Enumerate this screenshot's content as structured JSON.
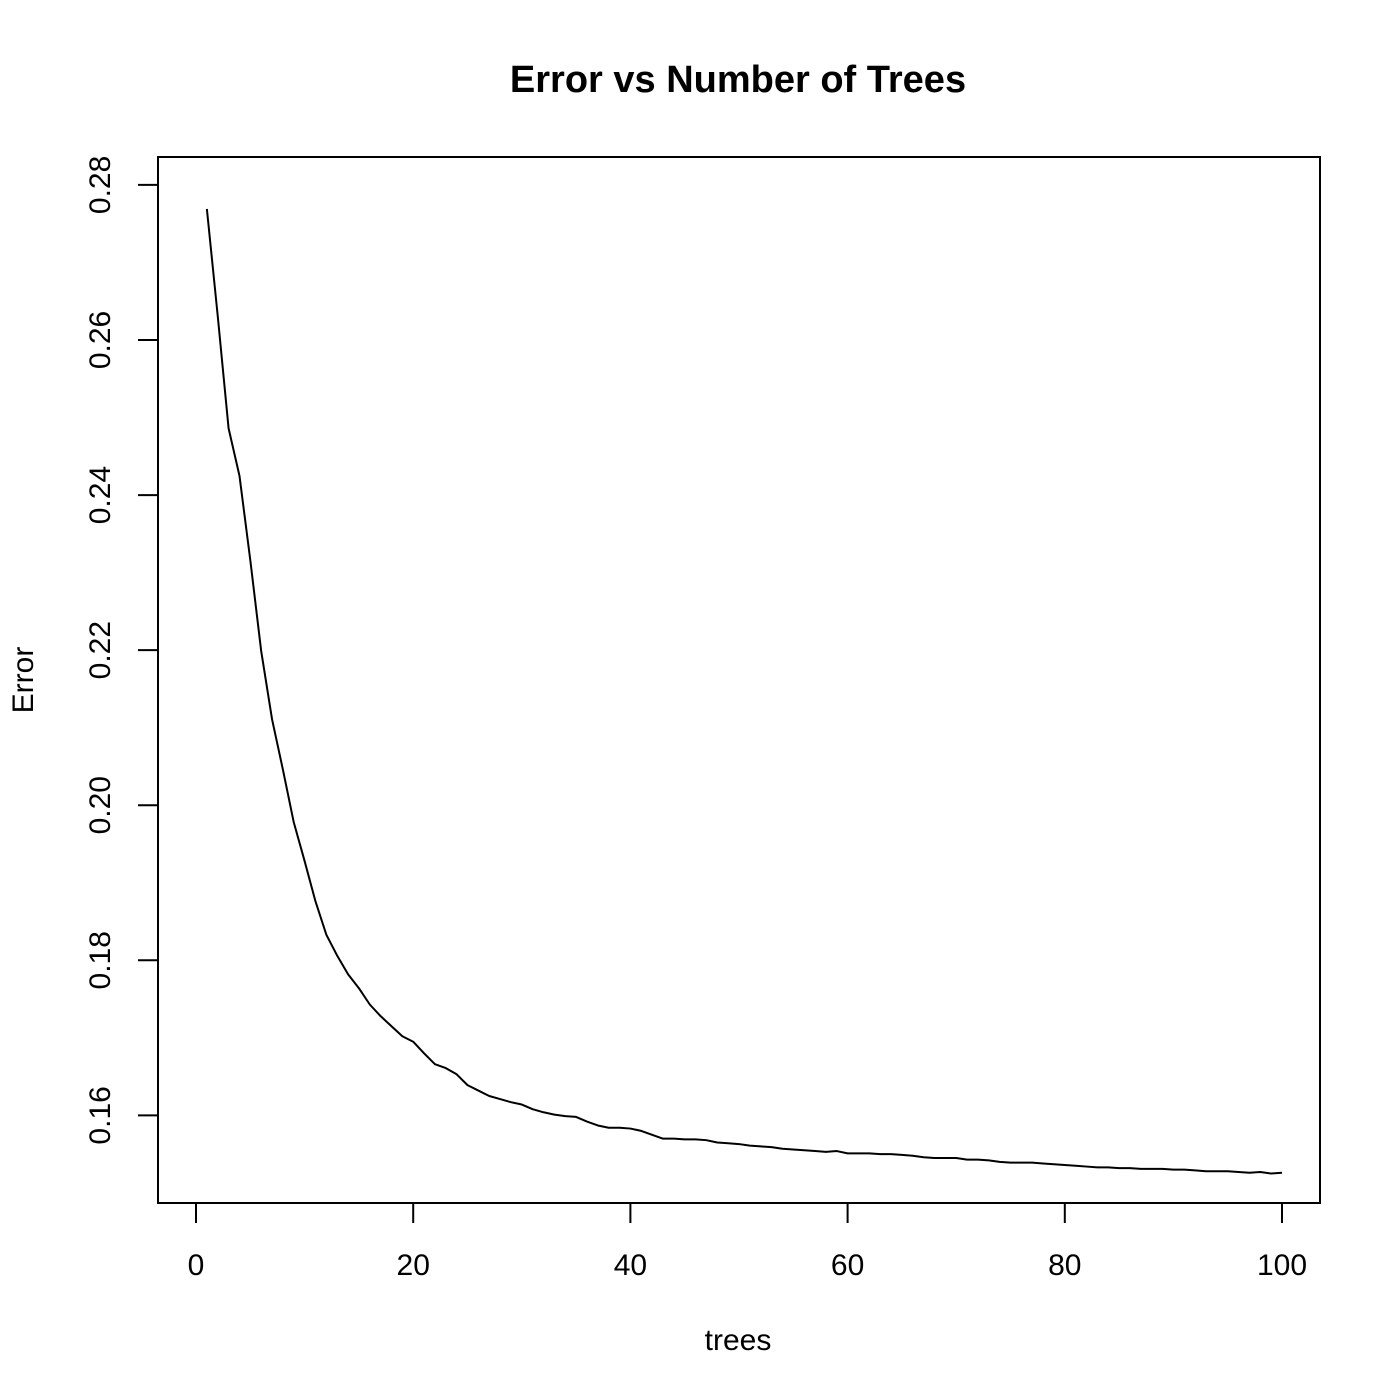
{
  "chart_data": {
    "type": "line",
    "title": "Error vs Number of Trees",
    "xlabel": "trees",
    "ylabel": "Error",
    "xlim": [
      -3.5,
      103.5
    ],
    "ylim": [
      0.1487,
      0.2836
    ],
    "xticks": [
      0,
      20,
      40,
      60,
      80,
      100
    ],
    "xtick_labels": [
      "0",
      "20",
      "40",
      "60",
      "80",
      "100"
    ],
    "yticks": [
      0.16,
      0.18,
      0.2,
      0.22,
      0.24,
      0.26,
      0.28
    ],
    "ytick_labels": [
      "0.16",
      "0.18",
      "0.20",
      "0.22",
      "0.24",
      "0.26",
      "0.28"
    ],
    "grid": false,
    "line_color": "#000000",
    "series": [
      {
        "name": "Error",
        "x": [
          1,
          2,
          3,
          4,
          5,
          6,
          7,
          8,
          9,
          10,
          11,
          12,
          13,
          14,
          15,
          16,
          17,
          18,
          19,
          20,
          21,
          22,
          23,
          24,
          25,
          26,
          27,
          28,
          29,
          30,
          31,
          32,
          33,
          34,
          35,
          36,
          37,
          38,
          39,
          40,
          41,
          42,
          43,
          44,
          45,
          46,
          47,
          48,
          49,
          50,
          51,
          52,
          53,
          54,
          55,
          56,
          57,
          58,
          59,
          60,
          61,
          62,
          63,
          64,
          65,
          66,
          67,
          68,
          69,
          70,
          71,
          72,
          73,
          74,
          75,
          76,
          77,
          78,
          79,
          80,
          81,
          82,
          83,
          84,
          85,
          86,
          87,
          88,
          89,
          90,
          91,
          92,
          93,
          94,
          95,
          96,
          97,
          98,
          99,
          100
        ],
        "values": [
          0.2769,
          0.2631,
          0.2486,
          0.2425,
          0.2316,
          0.2199,
          0.2111,
          0.2046,
          0.1978,
          0.1928,
          0.1876,
          0.1833,
          0.1806,
          0.1782,
          0.1764,
          0.1743,
          0.1728,
          0.1715,
          0.1702,
          0.1695,
          0.168,
          0.1666,
          0.1661,
          0.1653,
          0.1639,
          0.1632,
          0.1625,
          0.1621,
          0.1617,
          0.1614,
          0.1608,
          0.1604,
          0.1601,
          0.1599,
          0.1598,
          0.1592,
          0.1587,
          0.1584,
          0.1584,
          0.1583,
          0.158,
          0.1575,
          0.157,
          0.157,
          0.1569,
          0.1569,
          0.1568,
          0.1565,
          0.1564,
          0.1563,
          0.1561,
          0.156,
          0.1559,
          0.1557,
          0.1556,
          0.1555,
          0.1554,
          0.1553,
          0.1554,
          0.1551,
          0.1551,
          0.1551,
          0.155,
          0.155,
          0.1549,
          0.1548,
          0.1546,
          0.1545,
          0.1545,
          0.1545,
          0.1543,
          0.1543,
          0.1542,
          0.154,
          0.1539,
          0.1539,
          0.1539,
          0.1538,
          0.1537,
          0.1536,
          0.1535,
          0.1534,
          0.1533,
          0.1533,
          0.1532,
          0.1532,
          0.1531,
          0.1531,
          0.1531,
          0.153,
          0.153,
          0.1529,
          0.1528,
          0.1528,
          0.1528,
          0.1527,
          0.1526,
          0.1527,
          0.1525,
          0.1526
        ]
      }
    ]
  }
}
